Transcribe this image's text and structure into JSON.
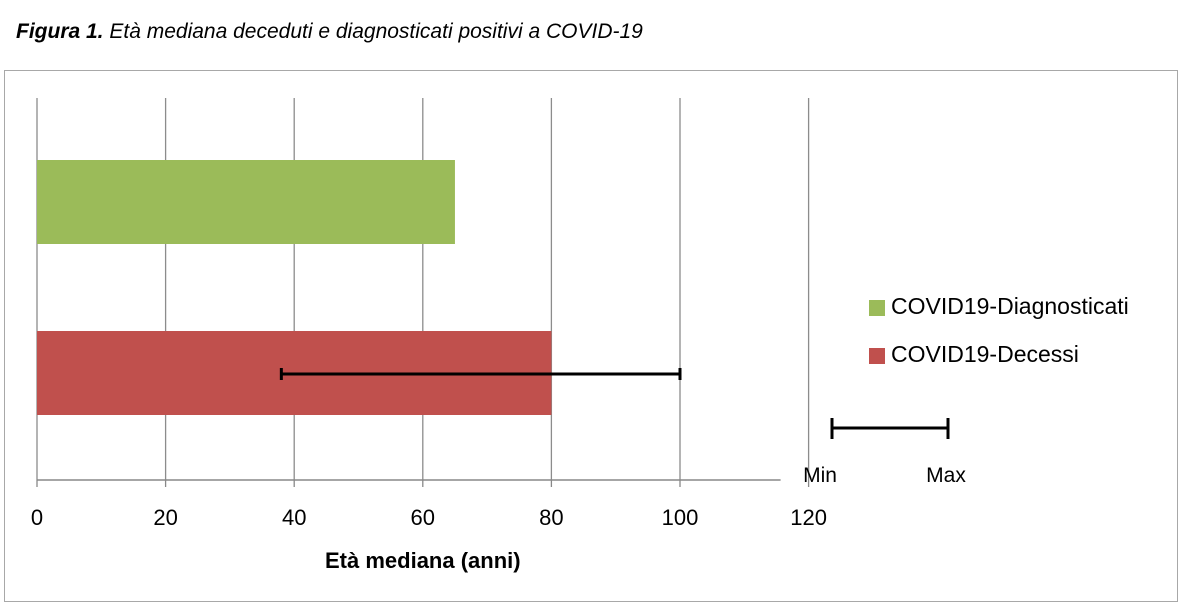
{
  "caption": {
    "label": "Figura 1.",
    "text": "Età mediana deceduti e diagnosticati positivi a COVID-19"
  },
  "chart_data": {
    "type": "bar",
    "orientation": "horizontal",
    "title": "",
    "xlabel": "Età mediana (anni)",
    "ylabel": "",
    "xlim": [
      0,
      120
    ],
    "xticks": [
      0,
      20,
      40,
      60,
      80,
      100,
      120
    ],
    "grid": true,
    "legend_position": "right",
    "series": [
      {
        "name": "COVID19-Diagnosticati",
        "color": "#9bbb59",
        "value": 65
      },
      {
        "name": "COVID19-Decessi",
        "color": "#c0504d",
        "value": 80,
        "error_range": [
          38,
          100
        ]
      }
    ],
    "error_bar_legend": {
      "min_label": "Min",
      "max_label": "Max"
    }
  }
}
